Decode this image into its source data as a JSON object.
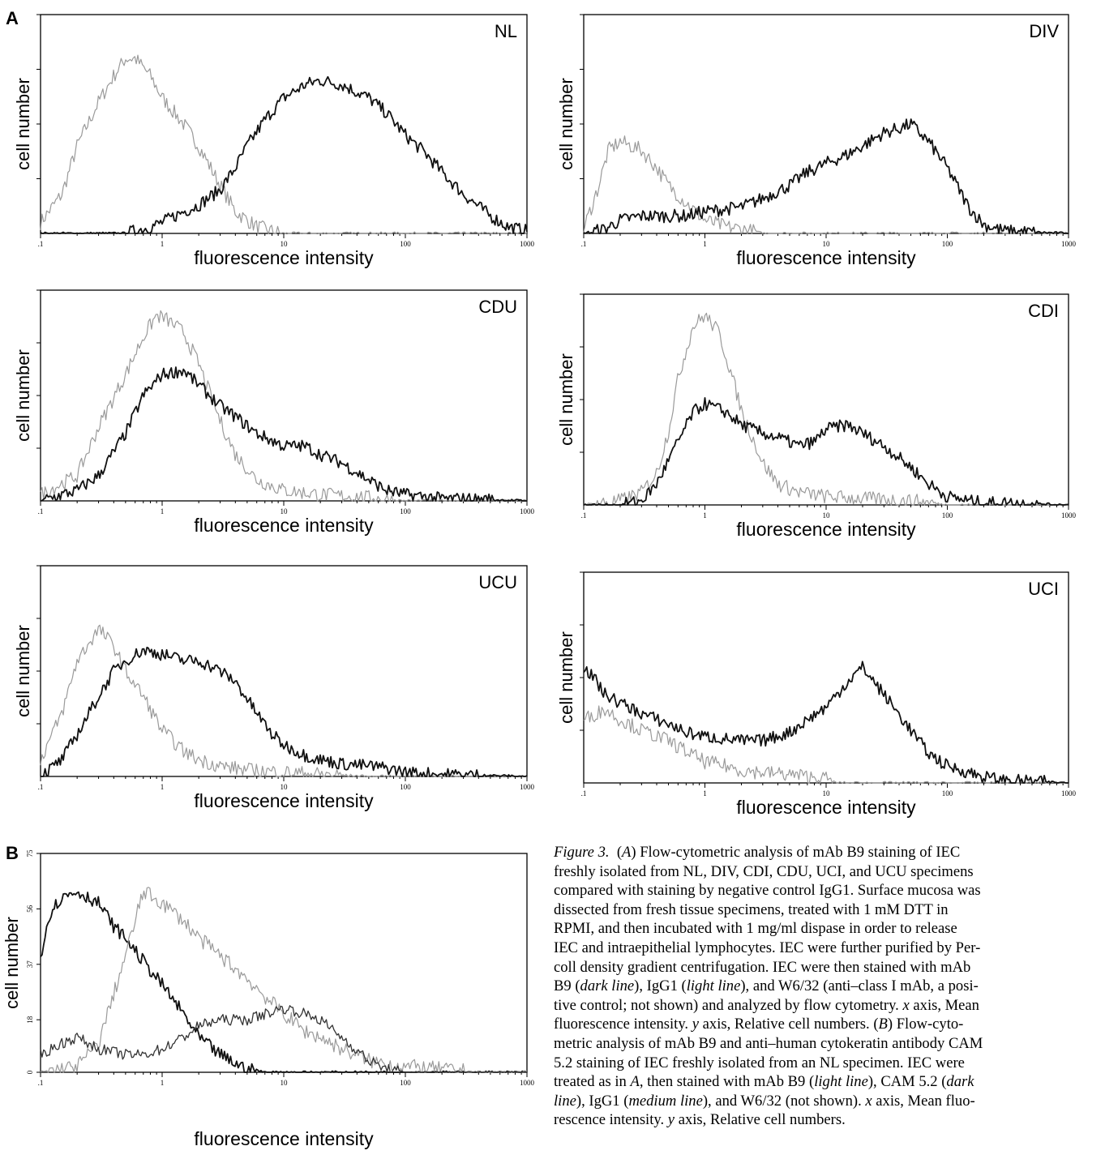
{
  "figure": {
    "panel_labels": {
      "a": "A",
      "b": "B"
    },
    "caption": {
      "prefix": "Figure 3.",
      "lines": [
        "(A) Flow-cytometric analysis of mAb B9 staining of IEC",
        "freshly isolated from NL, DIV, CDI, CDU, UCI, and UCU specimens",
        "compared with staining by negative control IgG1. Surface mucosa was",
        "dissected from fresh tissue specimens, treated with 1 mM DTT in",
        "RPMI, and then incubated with 1 mg/ml dispase in order to release",
        "IEC and intraepithelial lymphocytes. IEC were further purified by Per-",
        "coll density gradient centrifugation. IEC were then stained with mAb",
        "B9 (dark line), IgG1 (light line), and W6/32 (anti–class I mAb, a posi-",
        "tive control; not shown) and analyzed by flow cytometry. x axis, Mean",
        "fluorescence intensity. y axis, Relative cell numbers. (B) Flow-cyto-",
        "metric analysis of mAb B9 and anti–human cytokeratin antibody CAM",
        "5.2 staining of IEC freshly isolated from an NL specimen. IEC were",
        "treated as in A, then stained with mAb B9 (light line), CAM 5.2 (dark",
        "line), IgG1 (medium line), and W6/32 (not shown). x axis, Mean fluo-",
        "rescence intensity. y axis, Relative cell numbers."
      ]
    }
  },
  "chart_data": [
    {
      "id": "NL",
      "type": "line",
      "label": "NL",
      "xlabel": "fluorescence intensity",
      "ylabel": "cell number",
      "x_scale": "log",
      "xlim": [
        0.1,
        1000
      ],
      "x_ticks": [
        ".1",
        "1",
        "10",
        "100",
        "1000"
      ],
      "series": [
        {
          "style": "light",
          "x": [
            0.1,
            0.15,
            0.2,
            0.3,
            0.4,
            0.5,
            0.6,
            0.8,
            1,
            1.5,
            2,
            3,
            4,
            6,
            8,
            10,
            100,
            1000
          ],
          "y": [
            0.05,
            0.18,
            0.4,
            0.6,
            0.72,
            0.8,
            0.8,
            0.72,
            0.62,
            0.5,
            0.4,
            0.22,
            0.1,
            0.03,
            0.01,
            0,
            0,
            0
          ]
        },
        {
          "style": "dark",
          "x": [
            0.1,
            0.5,
            0.8,
            1,
            1.5,
            2,
            3,
            4,
            5,
            7,
            10,
            15,
            20,
            30,
            50,
            70,
            100,
            150,
            200,
            300,
            500,
            700,
            1000
          ],
          "y": [
            0,
            0,
            0.03,
            0.05,
            0.1,
            0.13,
            0.2,
            0.3,
            0.4,
            0.52,
            0.62,
            0.68,
            0.7,
            0.68,
            0.62,
            0.55,
            0.45,
            0.36,
            0.28,
            0.18,
            0.08,
            0.03,
            0.01
          ]
        }
      ]
    },
    {
      "id": "DIV",
      "type": "line",
      "label": "DIV",
      "xlabel": "fluorescence intensity",
      "ylabel": "cell number",
      "x_scale": "log",
      "xlim": [
        0.1,
        1000
      ],
      "x_ticks": [
        ".1",
        "1",
        "10",
        "100",
        "1000"
      ],
      "series": [
        {
          "style": "light",
          "x": [
            0.1,
            0.13,
            0.16,
            0.2,
            0.3,
            0.4,
            0.5,
            0.7,
            1,
            1.5,
            2,
            3,
            10,
            1000
          ],
          "y": [
            0.02,
            0.2,
            0.38,
            0.42,
            0.38,
            0.3,
            0.22,
            0.14,
            0.06,
            0.03,
            0.02,
            0,
            0,
            0
          ]
        },
        {
          "style": "dark",
          "x": [
            0.1,
            0.15,
            0.2,
            0.3,
            0.5,
            0.7,
            1,
            2,
            3,
            5,
            7,
            10,
            15,
            20,
            30,
            40,
            50,
            70,
            100,
            150,
            200,
            300,
            1000
          ],
          "y": [
            0,
            0.02,
            0.06,
            0.08,
            0.08,
            0.08,
            0.1,
            0.12,
            0.16,
            0.22,
            0.28,
            0.32,
            0.36,
            0.4,
            0.46,
            0.48,
            0.5,
            0.42,
            0.3,
            0.12,
            0.04,
            0.01,
            0
          ]
        }
      ]
    },
    {
      "id": "CDU",
      "type": "line",
      "label": "CDU",
      "xlabel": "fluorescence intensity",
      "ylabel": "cell number",
      "x_scale": "log",
      "xlim": [
        0.1,
        1000
      ],
      "x_ticks": [
        ".1",
        "1",
        "10",
        "100",
        "1000"
      ],
      "series": [
        {
          "style": "light",
          "x": [
            0.1,
            0.2,
            0.3,
            0.5,
            0.7,
            0.9,
            1.1,
            1.5,
            2,
            3,
            4,
            6,
            10,
            20,
            40,
            60,
            100,
            1000
          ],
          "y": [
            0.03,
            0.12,
            0.35,
            0.6,
            0.78,
            0.88,
            0.86,
            0.8,
            0.65,
            0.38,
            0.22,
            0.1,
            0.05,
            0.03,
            0.02,
            0.01,
            0,
            0
          ]
        },
        {
          "style": "dark",
          "x": [
            0.1,
            0.2,
            0.3,
            0.5,
            0.7,
            1,
            1.5,
            2,
            3,
            4,
            6,
            10,
            15,
            20,
            30,
            50,
            70,
            100,
            150,
            200,
            300,
            1000
          ],
          "y": [
            0,
            0.05,
            0.12,
            0.32,
            0.5,
            0.6,
            0.62,
            0.55,
            0.45,
            0.4,
            0.32,
            0.26,
            0.26,
            0.22,
            0.18,
            0.1,
            0.05,
            0.03,
            0.02,
            0.01,
            0.01,
            0
          ]
        }
      ]
    },
    {
      "id": "CDI",
      "type": "line",
      "label": "CDI",
      "xlabel": "fluorescence intensity",
      "ylabel": "cell number",
      "x_scale": "log",
      "xlim": [
        0.1,
        1000
      ],
      "x_ticks": [
        ".1",
        "1",
        "10",
        "100",
        "1000"
      ],
      "series": [
        {
          "style": "light",
          "x": [
            0.1,
            0.2,
            0.3,
            0.4,
            0.5,
            0.6,
            0.8,
            1,
            1.3,
            1.6,
            2,
            3,
            4,
            6,
            10,
            20,
            50,
            100,
            1000
          ],
          "y": [
            0,
            0.02,
            0.06,
            0.15,
            0.35,
            0.6,
            0.85,
            0.9,
            0.82,
            0.65,
            0.45,
            0.2,
            0.1,
            0.06,
            0.04,
            0.03,
            0.02,
            0,
            0
          ]
        },
        {
          "style": "dark",
          "x": [
            0.1,
            0.2,
            0.3,
            0.4,
            0.6,
            0.8,
            1,
            1.5,
            2,
            3,
            4,
            6,
            8,
            10,
            15,
            20,
            30,
            50,
            70,
            100,
            150,
            200,
            300,
            1000
          ],
          "y": [
            0,
            0,
            0.02,
            0.1,
            0.3,
            0.44,
            0.48,
            0.44,
            0.38,
            0.34,
            0.32,
            0.28,
            0.3,
            0.36,
            0.38,
            0.34,
            0.28,
            0.18,
            0.1,
            0.04,
            0.02,
            0.01,
            0.01,
            0
          ]
        }
      ]
    },
    {
      "id": "UCU",
      "type": "line",
      "label": "UCU",
      "xlabel": "fluorescence intensity",
      "ylabel": "cell number",
      "x_scale": "log",
      "xlim": [
        0.1,
        1000
      ],
      "x_ticks": [
        ".1",
        "1",
        "10",
        "100",
        "1000"
      ],
      "series": [
        {
          "style": "light",
          "x": [
            0.1,
            0.15,
            0.2,
            0.3,
            0.4,
            0.5,
            0.7,
            1,
            1.5,
            2,
            3,
            5,
            10,
            20,
            50,
            100,
            1000
          ],
          "y": [
            0.08,
            0.3,
            0.55,
            0.7,
            0.62,
            0.5,
            0.38,
            0.22,
            0.12,
            0.08,
            0.05,
            0.03,
            0.02,
            0.01,
            0,
            0,
            0
          ]
        },
        {
          "style": "dark",
          "x": [
            0.1,
            0.15,
            0.2,
            0.3,
            0.4,
            0.5,
            0.7,
            1,
            1.5,
            2,
            3,
            4,
            6,
            8,
            10,
            15,
            20,
            30,
            50,
            70,
            100,
            200,
            1000
          ],
          "y": [
            0,
            0.08,
            0.2,
            0.38,
            0.5,
            0.55,
            0.6,
            0.58,
            0.55,
            0.55,
            0.5,
            0.45,
            0.3,
            0.2,
            0.15,
            0.1,
            0.08,
            0.06,
            0.05,
            0.04,
            0.02,
            0.01,
            0
          ]
        }
      ]
    },
    {
      "id": "UCI",
      "type": "line",
      "label": "UCI",
      "xlabel": "fluorescence intensity",
      "ylabel": "cell number",
      "x_scale": "log",
      "xlim": [
        0.1,
        1000
      ],
      "x_ticks": [
        ".1",
        "1",
        "10",
        "100",
        "1000"
      ],
      "series": [
        {
          "style": "light",
          "x": [
            0.1,
            0.15,
            0.2,
            0.3,
            0.5,
            0.7,
            1,
            1.5,
            2,
            3,
            5,
            7,
            10,
            12,
            1000
          ],
          "y": [
            0.3,
            0.35,
            0.3,
            0.25,
            0.2,
            0.15,
            0.1,
            0.08,
            0.06,
            0.05,
            0.04,
            0.03,
            0.02,
            0,
            0
          ]
        },
        {
          "style": "dark",
          "x": [
            0.1,
            0.12,
            0.15,
            0.2,
            0.3,
            0.5,
            0.7,
            1,
            2,
            3,
            5,
            7,
            10,
            15,
            20,
            30,
            50,
            70,
            100,
            150,
            200,
            300,
            400,
            1000
          ],
          "y": [
            0.55,
            0.5,
            0.42,
            0.38,
            0.33,
            0.28,
            0.24,
            0.22,
            0.2,
            0.2,
            0.24,
            0.3,
            0.36,
            0.48,
            0.55,
            0.42,
            0.25,
            0.14,
            0.08,
            0.05,
            0.03,
            0.01,
            0.01,
            0
          ]
        }
      ]
    },
    {
      "id": "B",
      "type": "line",
      "label": "",
      "xlabel": "fluorescence intensity",
      "ylabel": "cell number",
      "x_scale": "log",
      "xlim": [
        0.1,
        1000
      ],
      "x_ticks": [
        ".1",
        "1",
        "10",
        "100",
        "1000"
      ],
      "y_ticks": [
        "0",
        "18",
        "37",
        "56",
        "75"
      ],
      "ylim": [
        0,
        75
      ],
      "series": [
        {
          "style": "dark",
          "x": [
            0.1,
            0.12,
            0.15,
            0.2,
            0.3,
            0.4,
            0.5,
            0.7,
            1,
            1.5,
            2,
            3,
            4,
            5,
            7,
            10,
            1000
          ],
          "y": [
            40,
            55,
            60,
            62,
            58,
            50,
            46,
            38,
            30,
            20,
            12,
            6,
            3,
            1,
            0,
            0,
            0
          ]
        },
        {
          "style": "light",
          "x": [
            0.1,
            0.2,
            0.3,
            0.5,
            0.7,
            1,
            1.5,
            2,
            3,
            5,
            7,
            10,
            15,
            20,
            30,
            50,
            100,
            200,
            400,
            1000
          ],
          "y": [
            0,
            2,
            10,
            40,
            62,
            58,
            52,
            46,
            40,
            32,
            26,
            20,
            14,
            12,
            8,
            4,
            2,
            1,
            0,
            0
          ]
        },
        {
          "style": "medium",
          "x": [
            0.1,
            0.15,
            0.2,
            0.3,
            0.5,
            0.7,
            1,
            1.5,
            2,
            3,
            5,
            7,
            10,
            15,
            20,
            30,
            50,
            70,
            100,
            1000
          ],
          "y": [
            6,
            10,
            12,
            8,
            6,
            6,
            8,
            12,
            16,
            18,
            18,
            20,
            22,
            20,
            18,
            12,
            4,
            1,
            0,
            0
          ]
        }
      ]
    }
  ]
}
